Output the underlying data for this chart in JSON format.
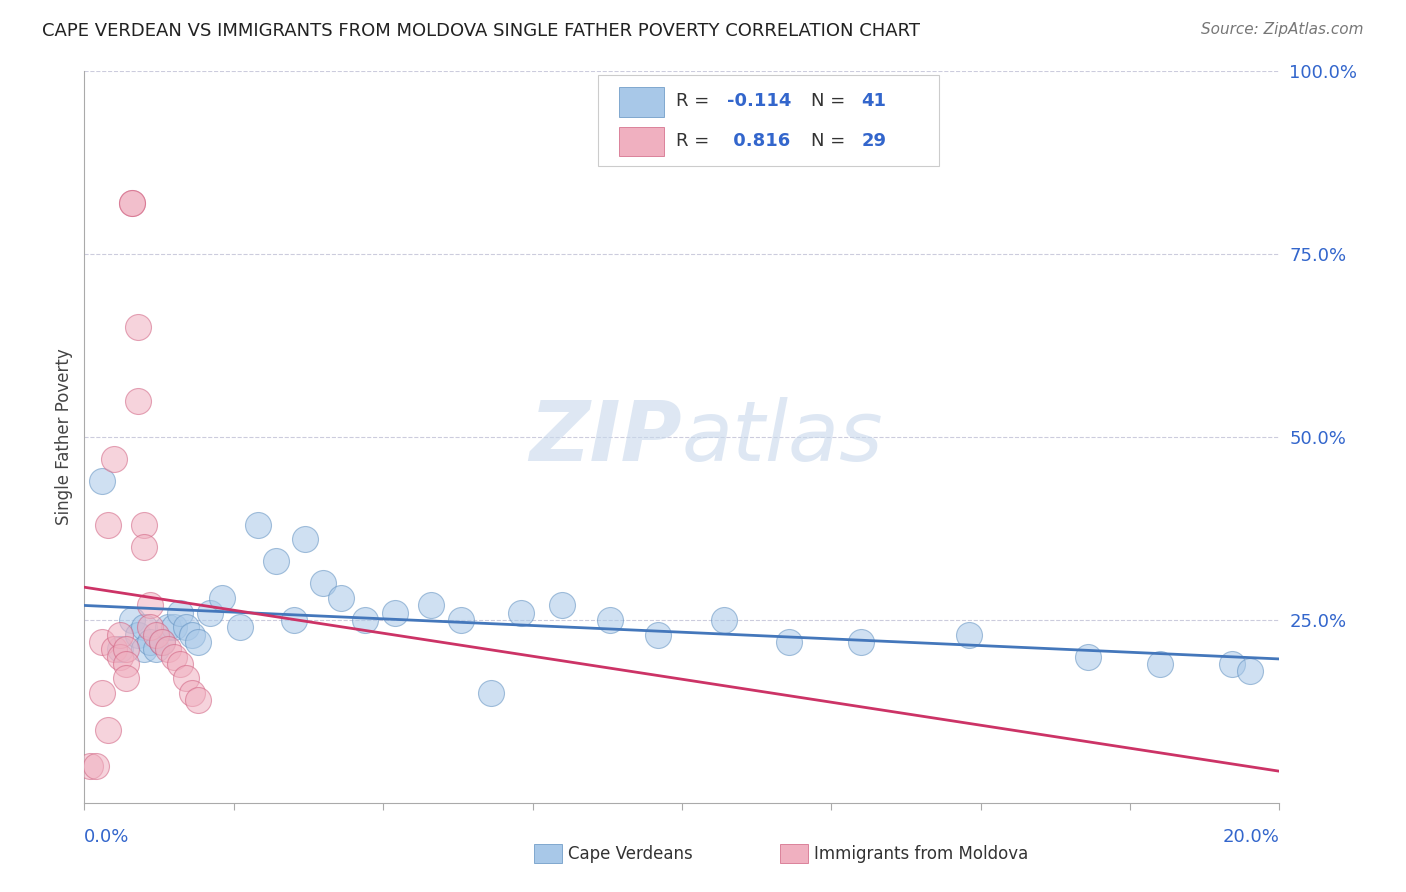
{
  "title": "CAPE VERDEAN VS IMMIGRANTS FROM MOLDOVA SINGLE FATHER POVERTY CORRELATION CHART",
  "source": "Source: ZipAtlas.com",
  "ylabel": "Single Father Poverty",
  "watermark_zip": "ZIP",
  "watermark_atlas": "atlas",
  "xlim": [
    0.0,
    0.2
  ],
  "ylim": [
    0.0,
    1.0
  ],
  "yticks": [
    0.25,
    0.5,
    0.75,
    1.0
  ],
  "ytick_labels": [
    "25.0%",
    "50.0%",
    "75.0%",
    "100.0%"
  ],
  "xticks": [
    0.0,
    0.025,
    0.05,
    0.075,
    0.1,
    0.125,
    0.15,
    0.175,
    0.2
  ],
  "blue_color": "#a8c8e8",
  "pink_color": "#f0b0c0",
  "blue_edge_color": "#6090c0",
  "pink_edge_color": "#d06080",
  "blue_line_color": "#4477bb",
  "pink_line_color": "#cc3366",
  "grid_color": "#ccccdd",
  "title_color": "#222222",
  "source_color": "#777777",
  "axis_label_color": "#3366cc",
  "legend_r1": "R = -0.114",
  "legend_n1": "N = 41",
  "legend_r2": "R =  0.816",
  "legend_n2": "N = 29",
  "bottom_label1": "Cape Verdeans",
  "bottom_label2": "Immigrants from Moldova",
  "cape_verdean_x": [
    0.003,
    0.006,
    0.008,
    0.009,
    0.01,
    0.01,
    0.011,
    0.012,
    0.013,
    0.014,
    0.015,
    0.016,
    0.017,
    0.018,
    0.019,
    0.021,
    0.023,
    0.026,
    0.029,
    0.032,
    0.035,
    0.037,
    0.04,
    0.043,
    0.047,
    0.052,
    0.058,
    0.063,
    0.068,
    0.073,
    0.08,
    0.088,
    0.096,
    0.107,
    0.118,
    0.13,
    0.148,
    0.168,
    0.18,
    0.192,
    0.195
  ],
  "cape_verdean_y": [
    0.44,
    0.21,
    0.25,
    0.23,
    0.24,
    0.21,
    0.22,
    0.21,
    0.22,
    0.24,
    0.24,
    0.26,
    0.24,
    0.23,
    0.22,
    0.26,
    0.28,
    0.24,
    0.38,
    0.33,
    0.25,
    0.36,
    0.3,
    0.28,
    0.25,
    0.26,
    0.27,
    0.25,
    0.15,
    0.26,
    0.27,
    0.25,
    0.23,
    0.25,
    0.22,
    0.22,
    0.23,
    0.2,
    0.19,
    0.19,
    0.18
  ],
  "moldova_x": [
    0.001,
    0.002,
    0.003,
    0.003,
    0.004,
    0.004,
    0.005,
    0.005,
    0.006,
    0.006,
    0.007,
    0.007,
    0.007,
    0.008,
    0.008,
    0.009,
    0.009,
    0.01,
    0.01,
    0.011,
    0.011,
    0.012,
    0.013,
    0.014,
    0.015,
    0.016,
    0.017,
    0.018,
    0.019
  ],
  "moldova_y": [
    0.05,
    0.05,
    0.22,
    0.15,
    0.38,
    0.1,
    0.47,
    0.21,
    0.23,
    0.2,
    0.21,
    0.19,
    0.17,
    0.82,
    0.82,
    0.65,
    0.55,
    0.38,
    0.35,
    0.27,
    0.24,
    0.23,
    0.22,
    0.21,
    0.2,
    0.19,
    0.17,
    0.15,
    0.14
  ]
}
